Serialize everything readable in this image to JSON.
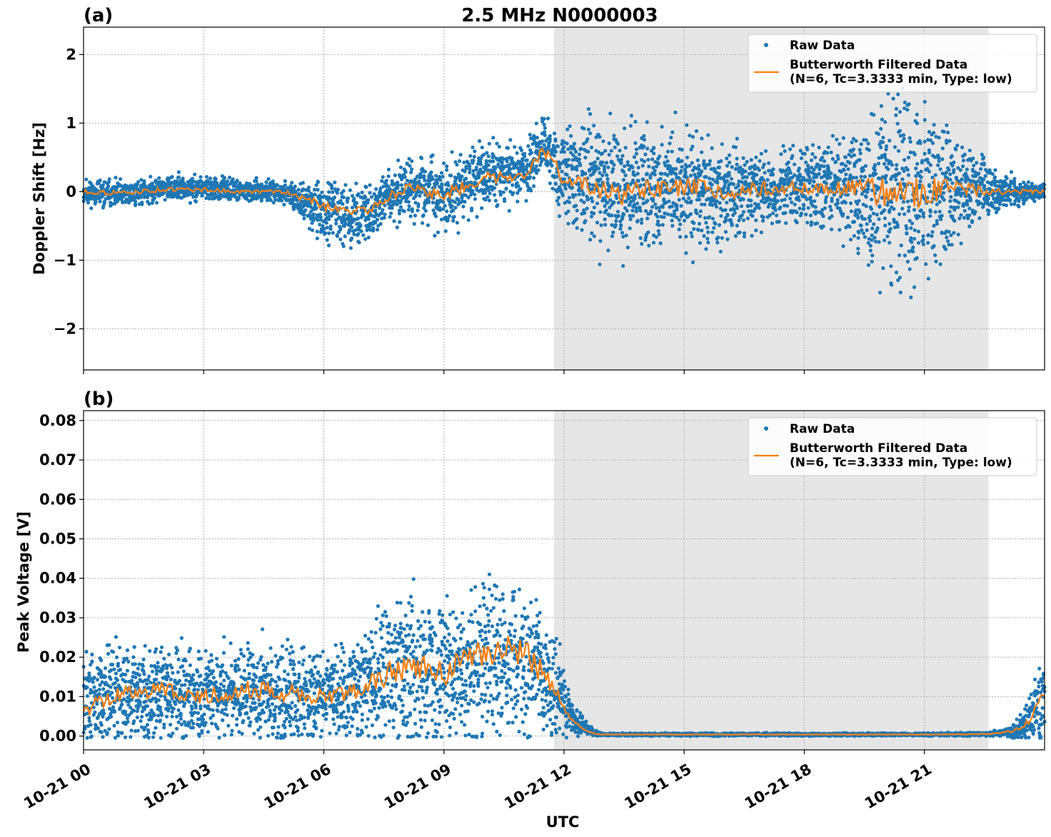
{
  "figure": {
    "title": "2.5 MHz N0000003",
    "xlabel": "UTC",
    "x_tick_labels": [
      "10-21 00",
      "10-21 03",
      "10-21 06",
      "10-21 09",
      "10-21 12",
      "10-21 15",
      "10-21 18",
      "10-21 21"
    ],
    "x_ticks_hours": [
      0,
      3,
      6,
      9,
      12,
      15,
      18,
      21
    ],
    "xlim_hours": [
      0,
      24
    ],
    "shaded_region_hours": [
      11.75,
      22.6
    ],
    "colors": {
      "raw": "#1f77b4",
      "filtered": "#ff7f0e",
      "shade": "#e6e6e6",
      "grid": "#b0b0b0"
    }
  },
  "legend": {
    "raw_label": "Raw Data",
    "filtered_label_line1": "Butterworth Filtered Data",
    "filtered_label_line2": "(N=6, Tc=3.3333 min, Type: low)",
    "placement": "top-right"
  },
  "chart_data": [
    {
      "type": "scatter",
      "panel_label": "(a)",
      "ylabel": "Doppler Shift [Hz]",
      "ylim": [
        -2.6,
        2.4
      ],
      "y_ticks": [
        -2,
        -1,
        0,
        1,
        2
      ],
      "y_tick_labels": [
        "−2",
        "−1",
        "0",
        "1",
        "2"
      ],
      "grid": true,
      "x_hours": [
        0,
        1,
        2,
        3,
        4,
        5,
        6,
        7,
        8,
        9,
        10,
        11,
        11.5,
        12,
        13,
        14,
        15,
        16,
        17,
        18,
        19,
        20,
        21,
        22,
        23,
        24
      ],
      "series": [
        {
          "name": "Raw Data",
          "center": [
            0.0,
            -0.05,
            0.05,
            0.05,
            0.0,
            0.0,
            -0.3,
            -0.35,
            0.1,
            -0.1,
            0.25,
            0.3,
            0.7,
            0.2,
            0.1,
            0.05,
            0.0,
            -0.05,
            0.05,
            0.05,
            0.1,
            0.0,
            0.0,
            0.05,
            0.0,
            0.0
          ],
          "spread": [
            0.15,
            0.15,
            0.15,
            0.15,
            0.12,
            0.12,
            0.35,
            0.35,
            0.35,
            0.4,
            0.4,
            0.35,
            0.35,
            0.6,
            0.8,
            0.7,
            0.7,
            0.55,
            0.45,
            0.45,
            0.55,
            1.1,
            1.0,
            0.5,
            0.2,
            0.1
          ]
        },
        {
          "name": "Butterworth Filtered Data (N=6, Tc=3.3333 min, Type: low)",
          "values": [
            0.0,
            -0.02,
            0.03,
            0.03,
            0.0,
            0.0,
            -0.2,
            -0.3,
            0.05,
            -0.05,
            0.2,
            0.25,
            0.6,
            0.2,
            -0.05,
            0.0,
            0.05,
            0.0,
            0.05,
            0.05,
            0.05,
            0.0,
            0.0,
            0.05,
            0.0,
            0.0
          ]
        }
      ]
    },
    {
      "type": "scatter",
      "panel_label": "(b)",
      "ylabel": "Peak Voltage [V]",
      "ylim": [
        -0.0035,
        0.0825
      ],
      "y_ticks": [
        0.0,
        0.01,
        0.02,
        0.03,
        0.04,
        0.05,
        0.06,
        0.07,
        0.08
      ],
      "y_tick_labels": [
        "0.00",
        "0.01",
        "0.02",
        "0.03",
        "0.04",
        "0.05",
        "0.06",
        "0.07",
        "0.08"
      ],
      "grid": true,
      "x_hours": [
        0,
        1,
        2,
        3,
        4,
        5,
        6,
        7,
        8,
        9,
        10,
        11,
        11.75,
        12.25,
        12.75,
        13,
        15,
        18,
        21,
        22.6,
        23.2,
        23.6,
        24
      ],
      "series": [
        {
          "name": "Raw Data",
          "center": [
            0.009,
            0.011,
            0.011,
            0.01,
            0.011,
            0.011,
            0.01,
            0.012,
            0.017,
            0.015,
            0.018,
            0.02,
            0.013,
            0.004,
            0.0008,
            0.0004,
            0.0004,
            0.0004,
            0.0004,
            0.0005,
            0.001,
            0.004,
            0.012
          ],
          "spread": [
            0.009,
            0.011,
            0.01,
            0.009,
            0.01,
            0.01,
            0.009,
            0.011,
            0.016,
            0.015,
            0.017,
            0.017,
            0.01,
            0.003,
            0.0006,
            0.0003,
            0.0003,
            0.0003,
            0.0003,
            0.0004,
            0.001,
            0.004,
            0.01
          ]
        },
        {
          "name": "Butterworth Filtered Data (N=6, Tc=3.3333 min, Type: low)",
          "values": [
            0.007,
            0.011,
            0.012,
            0.01,
            0.012,
            0.011,
            0.01,
            0.012,
            0.018,
            0.016,
            0.021,
            0.022,
            0.012,
            0.003,
            0.0005,
            0.0004,
            0.0004,
            0.0004,
            0.0004,
            0.0005,
            0.0012,
            0.0035,
            0.01
          ]
        }
      ]
    }
  ]
}
